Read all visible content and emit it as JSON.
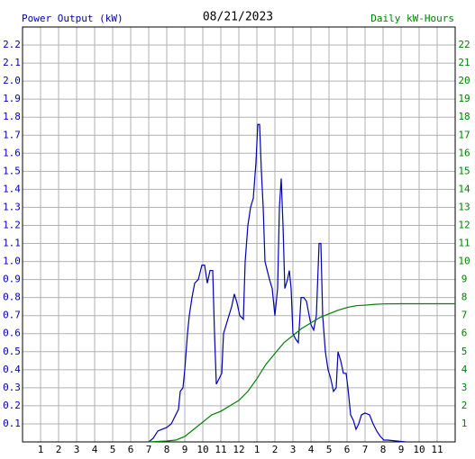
{
  "chart_data": {
    "type": "line",
    "title": "08/21/2023",
    "y_label": "Power Output (kW)",
    "y2_label": "Daily kW-Hours",
    "xlim": [
      0,
      24
    ],
    "xticks": [
      1,
      2,
      3,
      4,
      5,
      6,
      7,
      8,
      9,
      10,
      11,
      12,
      {
        "value": 13,
        "label": "1"
      },
      {
        "value": 14,
        "label": "2"
      },
      {
        "value": 15,
        "label": "3"
      },
      {
        "value": 16,
        "label": "4"
      },
      {
        "value": 17,
        "label": "5"
      },
      {
        "value": 18,
        "label": "6"
      },
      {
        "value": 19,
        "label": "7"
      },
      {
        "value": 20,
        "label": "8"
      },
      {
        "value": 21,
        "label": "9"
      },
      {
        "value": 22,
        "label": "10"
      },
      {
        "value": 23,
        "label": "11"
      }
    ],
    "ylim": [
      0,
      2.3
    ],
    "yticks": [
      0.1,
      0.2,
      0.3,
      0.4,
      0.5,
      0.6,
      0.7,
      0.8,
      0.9,
      {
        "value": 1.0,
        "label": "1.0"
      },
      1.1,
      1.2,
      1.3,
      1.4,
      1.5,
      1.6,
      1.7,
      1.8,
      1.9,
      {
        "value": 2.0,
        "label": "2.0"
      },
      2.1,
      2.2
    ],
    "y2lim": [
      0,
      23
    ],
    "y2ticks": [
      1,
      2,
      3,
      4,
      5,
      6,
      7,
      8,
      9,
      10,
      11,
      12,
      13,
      14,
      15,
      16,
      17,
      18,
      19,
      20,
      21,
      22
    ],
    "grid": true,
    "series": [
      {
        "name": "Power Output (kW)",
        "color": "#0000b0",
        "x": [
          7.0,
          7.25,
          7.5,
          7.75,
          8.0,
          8.25,
          8.5,
          8.65,
          8.75,
          8.9,
          9.0,
          9.15,
          9.25,
          9.4,
          9.55,
          9.75,
          9.95,
          10.1,
          10.25,
          10.4,
          10.55,
          10.65,
          10.75,
          10.9,
          11.05,
          11.15,
          11.3,
          11.45,
          11.6,
          11.75,
          11.9,
          12.05,
          12.25,
          12.35,
          12.5,
          12.65,
          12.8,
          12.95,
          13.05,
          13.15,
          13.25,
          13.35,
          13.45,
          13.55,
          13.7,
          13.85,
          14.0,
          14.15,
          14.25,
          14.35,
          14.45,
          14.55,
          14.7,
          14.8,
          14.9,
          15.0,
          15.15,
          15.3,
          15.45,
          15.6,
          15.75,
          15.9,
          16.0,
          16.15,
          16.3,
          16.45,
          16.55,
          16.65,
          16.8,
          16.95,
          17.1,
          17.25,
          17.4,
          17.5,
          17.65,
          17.8,
          17.95,
          18.05,
          18.2,
          18.35,
          18.5,
          18.65,
          18.8,
          19.0,
          19.25,
          19.45,
          19.65,
          19.85,
          20.05,
          20.25,
          20.75,
          21.25
        ],
        "values": [
          0,
          0.02,
          0.06,
          0.07,
          0.08,
          0.1,
          0.15,
          0.18,
          0.28,
          0.3,
          0.4,
          0.6,
          0.7,
          0.8,
          0.88,
          0.9,
          0.98,
          0.98,
          0.88,
          0.95,
          0.95,
          0.6,
          0.32,
          0.35,
          0.38,
          0.6,
          0.65,
          0.7,
          0.75,
          0.82,
          0.77,
          0.7,
          0.68,
          1.0,
          1.2,
          1.3,
          1.35,
          1.55,
          1.76,
          1.76,
          1.5,
          1.3,
          1.0,
          0.96,
          0.9,
          0.85,
          0.7,
          0.85,
          1.3,
          1.46,
          1.2,
          0.85,
          0.9,
          0.95,
          0.85,
          0.6,
          0.57,
          0.55,
          0.8,
          0.8,
          0.78,
          0.7,
          0.65,
          0.62,
          0.7,
          1.1,
          1.1,
          0.7,
          0.5,
          0.4,
          0.35,
          0.28,
          0.3,
          0.5,
          0.45,
          0.38,
          0.38,
          0.3,
          0.15,
          0.12,
          0.07,
          0.1,
          0.15,
          0.16,
          0.15,
          0.1,
          0.06,
          0.03,
          0.01,
          0.01,
          0.005,
          0
        ]
      },
      {
        "name": "Daily kW-Hours",
        "color": "#008000",
        "axis": "y2",
        "x": [
          7.0,
          8.0,
          8.5,
          9.0,
          9.5,
          10.0,
          10.5,
          11.0,
          11.5,
          12.0,
          12.5,
          13.0,
          13.5,
          14.0,
          14.5,
          15.0,
          15.5,
          16.0,
          16.5,
          17.0,
          17.5,
          18.0,
          18.5,
          19.0,
          19.5,
          20.0,
          21.0,
          24.0
        ],
        "values": [
          0,
          0.05,
          0.1,
          0.3,
          0.7,
          1.1,
          1.5,
          1.7,
          2.0,
          2.3,
          2.8,
          3.5,
          4.3,
          4.9,
          5.5,
          5.9,
          6.3,
          6.6,
          6.9,
          7.1,
          7.3,
          7.45,
          7.55,
          7.58,
          7.62,
          7.65,
          7.66,
          7.66
        ]
      }
    ]
  }
}
